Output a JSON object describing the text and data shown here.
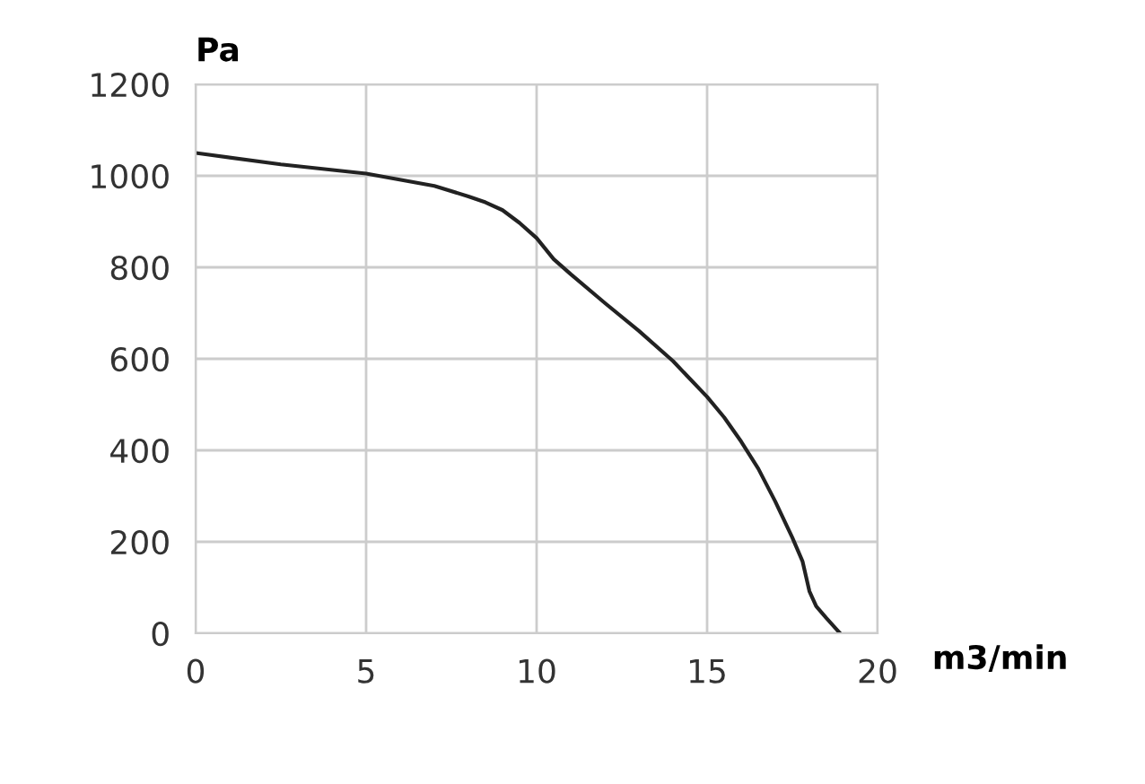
{
  "chart_data": {
    "type": "line",
    "xlabel": "m3/min",
    "ylabel": "Pa",
    "series": [
      {
        "color": "#222222",
        "x": [
          0,
          2.5,
          5,
          7,
          8,
          8.5,
          9,
          9.5,
          10,
          10.5,
          11,
          12,
          13,
          14,
          15,
          15.5,
          16,
          16.5,
          17,
          17.5,
          17.8,
          18,
          18.2,
          18.5,
          18.9
        ],
        "values": [
          1050,
          1025,
          1005,
          978,
          955,
          942,
          925,
          897,
          864,
          818,
          785,
          722,
          661,
          595,
          517,
          472,
          419,
          360,
          288,
          209,
          157,
          92,
          59,
          33,
          0
        ]
      }
    ],
    "xlim": [
      0,
      20
    ],
    "xticks": [
      0,
      5,
      10,
      15,
      20
    ],
    "ylim": [
      0,
      1200
    ],
    "yticks": [
      0,
      200,
      400,
      600,
      800,
      1000,
      1200
    ],
    "grid": true,
    "marker": "none",
    "line_style": "solid",
    "legend": false
  }
}
